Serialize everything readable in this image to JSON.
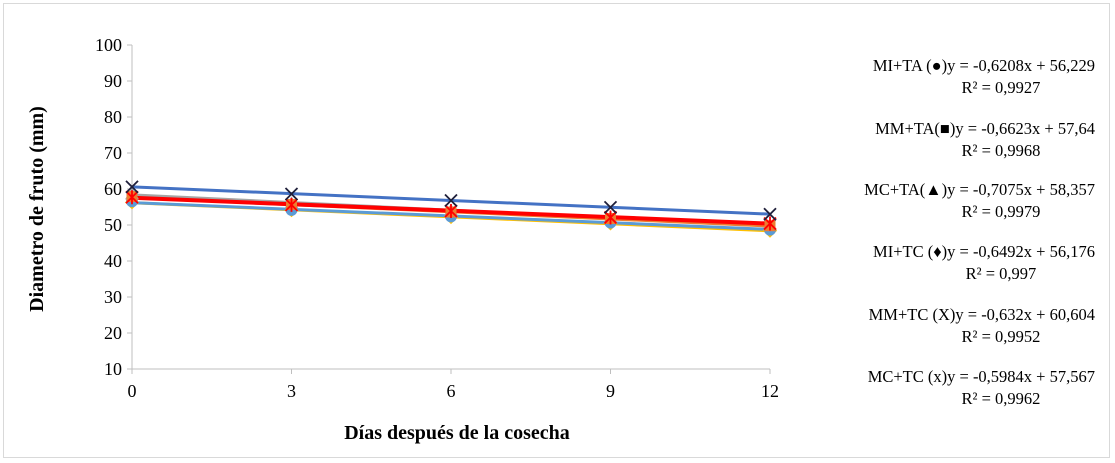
{
  "chart_data": {
    "type": "scatter",
    "xlabel": "Días después de la cosecha",
    "ylabel": "Diametro de fruto (mm)",
    "x": [
      0,
      3,
      6,
      9,
      12
    ],
    "xticks": [
      "0",
      "3",
      "6",
      "9",
      "12"
    ],
    "yticks": [
      "10",
      "20",
      "30",
      "40",
      "50",
      "60",
      "70",
      "80",
      "90",
      "100"
    ],
    "xlim": [
      0,
      12
    ],
    "ylim": [
      10,
      100
    ],
    "grid": false,
    "series": [
      {
        "name": "MI+TA (●)",
        "marker": "circle",
        "color": "#5b9bd5",
        "values": [
          56.6,
          54.2,
          52.4,
          50.7,
          48.7
        ],
        "slope": -0.6208,
        "intercept": 56.229,
        "equation": "MI+TA (●)y = -0,6208x + 56,229",
        "r2": "R² = 0,9927"
      },
      {
        "name": "MM+TA(■)",
        "marker": "square",
        "color": "#ed7d31",
        "values": [
          57.9,
          55.7,
          53.6,
          51.8,
          49.8
        ],
        "slope": -0.6623,
        "intercept": 57.64,
        "equation": "MM+TA(■)y = -0,6623x + 57,64",
        "r2": "R² = 0,9968"
      },
      {
        "name": "MC+TA(▲)",
        "marker": "triangle",
        "color": "#a5a5a5",
        "values": [
          58.5,
          56.0,
          54.0,
          52.0,
          49.9
        ],
        "slope": -0.7075,
        "intercept": 58.357,
        "equation": "MC+TA(▲)y = -0,7075x + 58,357",
        "r2": "R² = 0,9979"
      },
      {
        "name": "MI+TC (♦)",
        "marker": "diamond",
        "color": "#ffc000",
        "values": [
          56.3,
          54.1,
          52.2,
          50.4,
          48.4
        ],
        "slope": -0.6492,
        "intercept": 56.176,
        "equation": "MI+TC (♦)y = -0,6492x + 56,176",
        "r2": "R² = 0,997"
      },
      {
        "name": "MM+TC (X)",
        "marker": "x",
        "color": "#4472c4",
        "values": [
          60.6,
          58.6,
          56.8,
          54.9,
          53.0
        ],
        "slope": -0.632,
        "intercept": 60.604,
        "equation": "MM+TC (X)y = -0,632x + 60,604",
        "r2": "R² = 0,9952"
      },
      {
        "name": "MC+TC (x)",
        "marker": "star",
        "color": "#ff0000",
        "values": [
          57.7,
          55.6,
          53.9,
          52.1,
          50.4
        ],
        "slope": -0.5984,
        "intercept": 57.567,
        "equation": "MC+TC (x)y = -0,5984x + 57,567",
        "r2": "R² = 0,9962"
      }
    ]
  }
}
